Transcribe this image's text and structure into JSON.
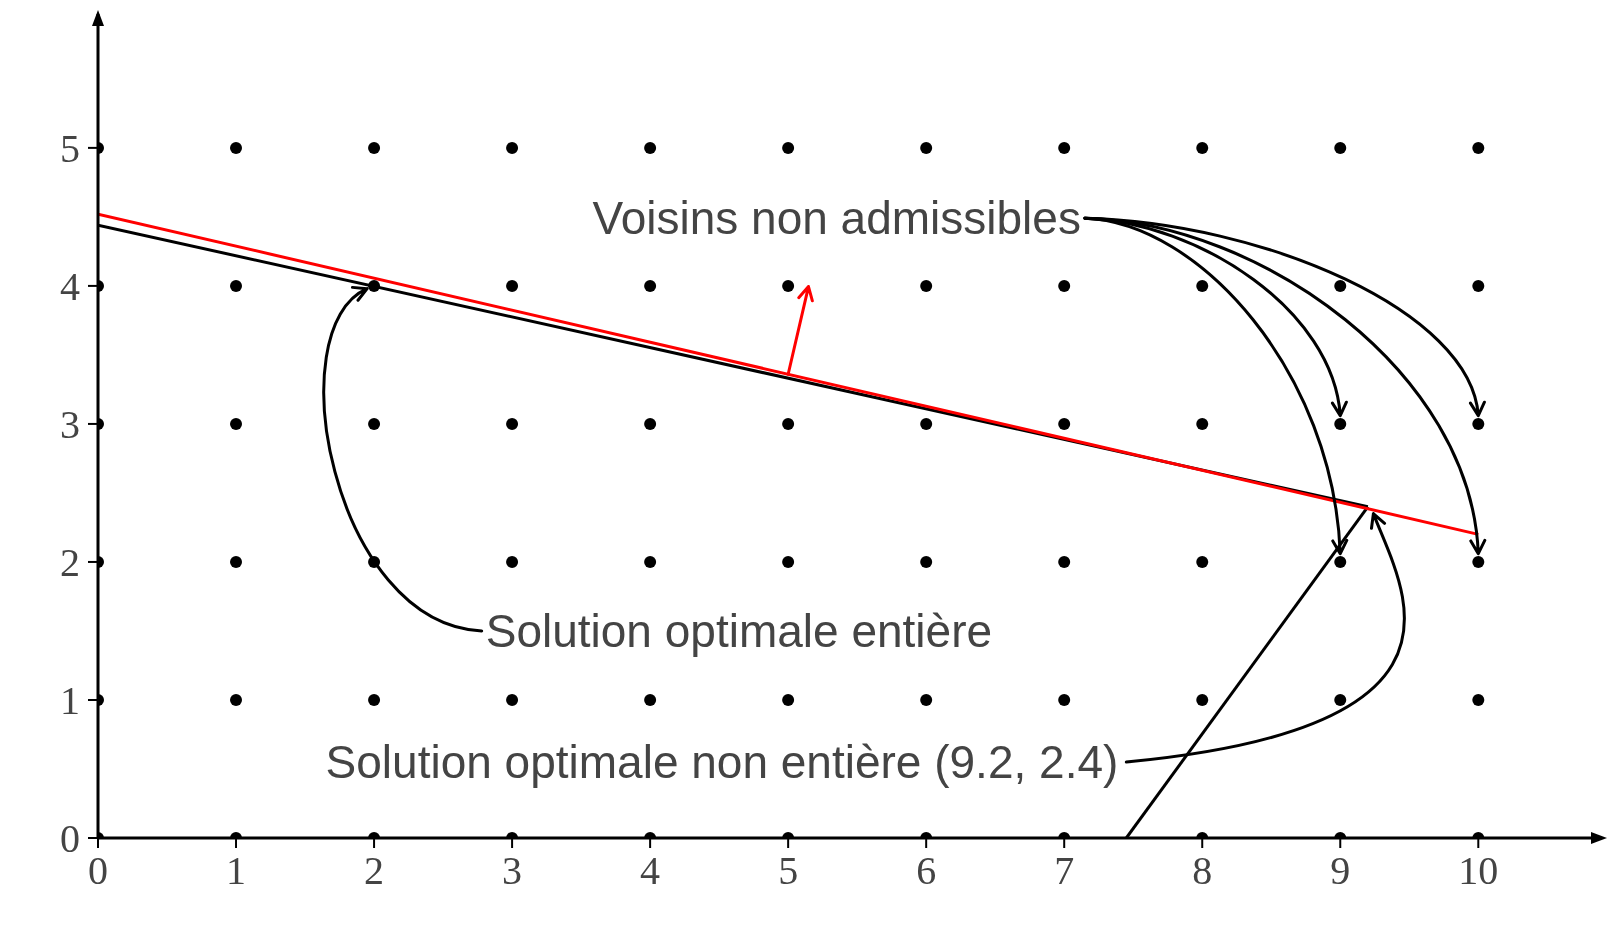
{
  "chart_data": {
    "type": "scatter",
    "xlim": [
      0,
      10.86
    ],
    "ylim": [
      0,
      5.97
    ],
    "xticks": [
      0,
      1,
      2,
      3,
      4,
      5,
      6,
      7,
      8,
      9,
      10
    ],
    "yticks": [
      0,
      1,
      2,
      3,
      4,
      5
    ],
    "series": [
      {
        "marker": "circle",
        "color": "#000000",
        "x": [
          0,
          1,
          2,
          3,
          4,
          5,
          6,
          7,
          8,
          9,
          10,
          0,
          1,
          2,
          3,
          4,
          5,
          6,
          7,
          8,
          9,
          10,
          0,
          1,
          2,
          3,
          4,
          5,
          6,
          7,
          8,
          9,
          10,
          0,
          1,
          2,
          3,
          4,
          5,
          6,
          7,
          8,
          9,
          10,
          0,
          1,
          2,
          3,
          4,
          5,
          6,
          7,
          8,
          9,
          10,
          0,
          1,
          2,
          3,
          4,
          5,
          6,
          7,
          8,
          9,
          10
        ],
        "values": [
          0,
          0,
          0,
          0,
          0,
          0,
          0,
          0,
          0,
          0,
          0,
          1,
          1,
          1,
          1,
          1,
          1,
          1,
          1,
          1,
          1,
          1,
          2,
          2,
          2,
          2,
          2,
          2,
          2,
          2,
          2,
          2,
          2,
          3,
          3,
          3,
          3,
          3,
          3,
          3,
          3,
          3,
          3,
          3,
          4,
          4,
          4,
          4,
          4,
          4,
          4,
          4,
          4,
          4,
          4,
          5,
          5,
          5,
          5,
          5,
          5,
          5,
          5,
          5,
          5,
          5
        ]
      },
      {
        "type": "line",
        "color": "#000000",
        "x": [
          0,
          9.2
        ],
        "values": [
          4.44,
          2.4
        ]
      },
      {
        "type": "line",
        "color": "#000000",
        "x": [
          7.45,
          9.2
        ],
        "values": [
          0,
          2.4
        ]
      },
      {
        "type": "line",
        "color": "#ff0000",
        "x": [
          0,
          10
        ],
        "values": [
          4.52,
          2.2
        ]
      }
    ],
    "annotations": [
      {
        "text": "Voisins non admissibles",
        "x": 9,
        "y": 3
      },
      {
        "text": "Solution optimale entière",
        "x": 2,
        "y": 4
      },
      {
        "text": "Solution optimale non entière (9.2, 2.4)",
        "x": 9.2,
        "y": 2.4
      }
    ]
  }
}
